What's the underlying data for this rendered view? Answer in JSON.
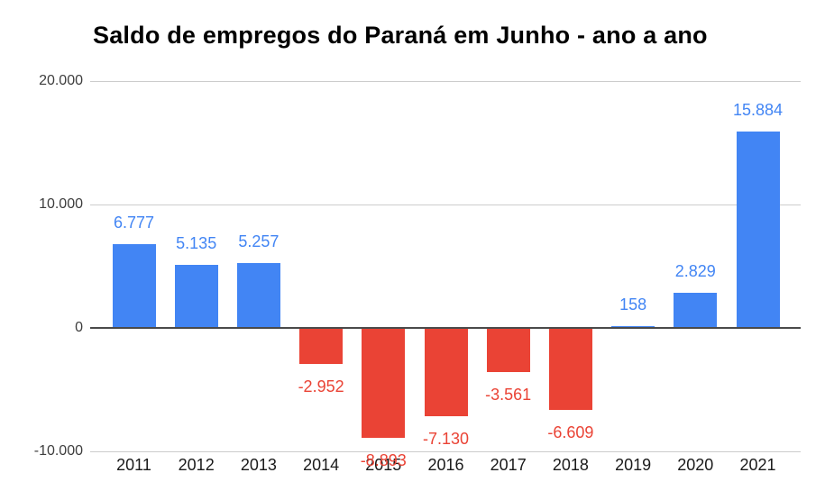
{
  "chart_data": {
    "type": "bar",
    "title": "Saldo de empregos do Paraná em Junho - ano a ano",
    "categories": [
      "2011",
      "2012",
      "2013",
      "2014",
      "2015",
      "2016",
      "2017",
      "2018",
      "2019",
      "2020",
      "2021"
    ],
    "values": [
      6777,
      5135,
      5257,
      -2952,
      -8893,
      -7130,
      -3561,
      -6609,
      158,
      2829,
      15884
    ],
    "value_labels": [
      "6.777",
      "5.135",
      "5.257",
      "-2.952",
      "-8.893",
      "-7.130",
      "-3.561",
      "-6.609",
      "158",
      "2.829",
      "15.884"
    ],
    "xlabel": "",
    "ylabel": "",
    "ylim": [
      -10000,
      20000
    ],
    "y_ticks": [
      {
        "value": 20000,
        "label": "20.000"
      },
      {
        "value": 10000,
        "label": "10.000"
      },
      {
        "value": 0,
        "label": "0"
      },
      {
        "value": -10000,
        "label": "-10.000"
      }
    ],
    "grid": true,
    "legend": "none",
    "colors": {
      "positive": "#4285f4",
      "negative": "#ea4335",
      "gridline": "#cccccc",
      "zero_line": "#4a4a4a",
      "axis_text": "#3d3d3d",
      "title_text": "#000000"
    }
  }
}
